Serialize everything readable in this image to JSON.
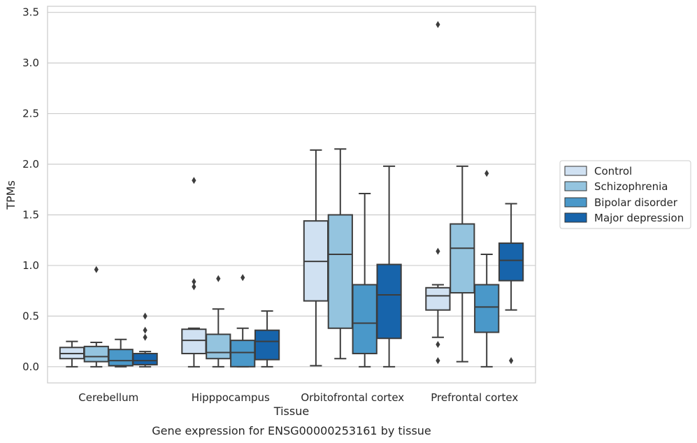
{
  "chart_data": {
    "type": "box",
    "title": "",
    "caption": "Gene expression for ENSG00000253161 by tissue",
    "xlabel": "Tissue",
    "ylabel": "TPMs",
    "ylim": [
      -0.16,
      3.56
    ],
    "yticks": [
      0.0,
      0.5,
      1.0,
      1.5,
      2.0,
      2.5,
      3.0,
      3.5
    ],
    "ytick_labels": [
      "0.0",
      "0.5",
      "1.0",
      "1.5",
      "2.0",
      "2.5",
      "3.0",
      "3.5"
    ],
    "grid": "horizontal",
    "legend_position": "outside-right",
    "categories": [
      "Cerebellum",
      "Hipppocampus",
      "Orbitofrontal cortex",
      "Prefrontal cortex"
    ],
    "series": [
      {
        "name": "Control",
        "color": "#d0e1f2",
        "boxes": [
          {
            "whislo": 0.0,
            "q1": 0.08,
            "med": 0.13,
            "q3": 0.19,
            "whishi": 0.25,
            "fliers": []
          },
          {
            "whislo": 0.0,
            "q1": 0.13,
            "med": 0.26,
            "q3": 0.37,
            "whishi": 0.38,
            "fliers": [
              0.79,
              0.84,
              1.84
            ]
          },
          {
            "whislo": 0.01,
            "q1": 0.65,
            "med": 1.04,
            "q3": 1.44,
            "whishi": 2.14,
            "fliers": []
          },
          {
            "whislo": 0.29,
            "q1": 0.56,
            "med": 0.7,
            "q3": 0.78,
            "whishi": 0.81,
            "fliers": [
              0.06,
              0.22,
              1.14,
              3.38
            ]
          }
        ]
      },
      {
        "name": "Schizophrenia",
        "color": "#94c4df",
        "boxes": [
          {
            "whislo": 0.0,
            "q1": 0.05,
            "med": 0.1,
            "q3": 0.2,
            "whishi": 0.24,
            "fliers": [
              0.96
            ]
          },
          {
            "whislo": 0.0,
            "q1": 0.08,
            "med": 0.14,
            "q3": 0.32,
            "whishi": 0.57,
            "fliers": [
              0.87
            ]
          },
          {
            "whislo": 0.08,
            "q1": 0.38,
            "med": 1.11,
            "q3": 1.5,
            "whishi": 2.15,
            "fliers": []
          },
          {
            "whislo": 0.05,
            "q1": 0.73,
            "med": 1.17,
            "q3": 1.41,
            "whishi": 1.98,
            "fliers": []
          }
        ]
      },
      {
        "name": "Bipolar disorder",
        "color": "#4a98c9",
        "boxes": [
          {
            "whislo": 0.0,
            "q1": 0.01,
            "med": 0.06,
            "q3": 0.17,
            "whishi": 0.27,
            "fliers": []
          },
          {
            "whislo": 0.0,
            "q1": 0.0,
            "med": 0.14,
            "q3": 0.26,
            "whishi": 0.38,
            "fliers": [
              0.88
            ]
          },
          {
            "whislo": 0.0,
            "q1": 0.13,
            "med": 0.43,
            "q3": 0.81,
            "whishi": 1.71,
            "fliers": []
          },
          {
            "whislo": 0.0,
            "q1": 0.34,
            "med": 0.59,
            "q3": 0.81,
            "whishi": 1.11,
            "fliers": [
              1.91
            ]
          }
        ]
      },
      {
        "name": "Major depression",
        "color": "#1764ab",
        "boxes": [
          {
            "whislo": 0.0,
            "q1": 0.02,
            "med": 0.06,
            "q3": 0.13,
            "whishi": 0.15,
            "fliers": [
              0.29,
              0.36,
              0.5
            ]
          },
          {
            "whislo": 0.0,
            "q1": 0.07,
            "med": 0.25,
            "q3": 0.36,
            "whishi": 0.55,
            "fliers": []
          },
          {
            "whislo": 0.0,
            "q1": 0.28,
            "med": 0.71,
            "q3": 1.01,
            "whishi": 1.98,
            "fliers": []
          },
          {
            "whislo": 0.56,
            "q1": 0.85,
            "med": 1.05,
            "q3": 1.22,
            "whishi": 1.61,
            "fliers": [
              0.06
            ]
          }
        ]
      }
    ]
  }
}
